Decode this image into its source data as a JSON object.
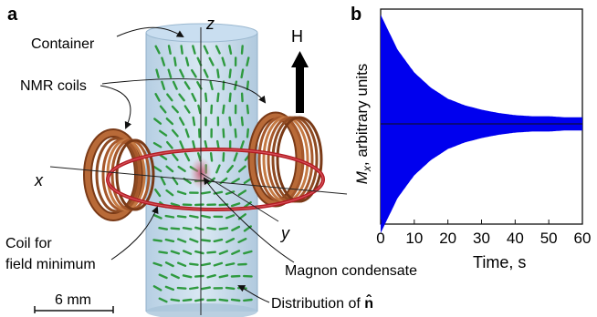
{
  "panel_a": {
    "panel_label": "a",
    "labels": {
      "container": "Container",
      "nmr_coils": "NMR coils",
      "coil_min_line1": "Coil for",
      "coil_min_line2": "field minimum",
      "magnon": "Magnon condensate",
      "distribution": "Distribution of ",
      "n_hat": "n̂",
      "axis_x": "x",
      "axis_y": "y",
      "axis_z": "z",
      "field": "H",
      "scale_bar": "6 mm"
    },
    "colors": {
      "container_fill": "#bcd6ea",
      "coil_copper": "#a6582b",
      "coil_ring": "#b21c24",
      "condensate": "#c8627a",
      "vector_green": "#2e9a3f"
    }
  },
  "panel_b": {
    "panel_label": "b",
    "trace_color": "#0000ee"
  },
  "chart_data": {
    "type": "line",
    "title": "",
    "xlabel": "Time, s",
    "ylabel_main": "M",
    "ylabel_sub": "x",
    "ylabel_rest": ", arbitrary units",
    "xlim": [
      0,
      60
    ],
    "x_ticks": [
      "0",
      "10",
      "20",
      "30",
      "40",
      "50",
      "60"
    ],
    "description_values": {
      "initial_amplitude": 1.0,
      "decay_time_s": 12.0,
      "residual_amplitude": 0.06
    },
    "series": [
      {
        "x": [
          0,
          5,
          10,
          15,
          20,
          25,
          30,
          35,
          40,
          45,
          50,
          55,
          60
        ],
        "upper_envelope": [
          1.0,
          0.68,
          0.47,
          0.33,
          0.23,
          0.17,
          0.13,
          0.1,
          0.08,
          0.07,
          0.07,
          0.06,
          0.06
        ],
        "lower_envelope": [
          -1.0,
          -0.68,
          -0.47,
          -0.33,
          -0.23,
          -0.17,
          -0.13,
          -0.1,
          -0.08,
          -0.07,
          -0.07,
          -0.06,
          -0.06
        ]
      }
    ]
  }
}
